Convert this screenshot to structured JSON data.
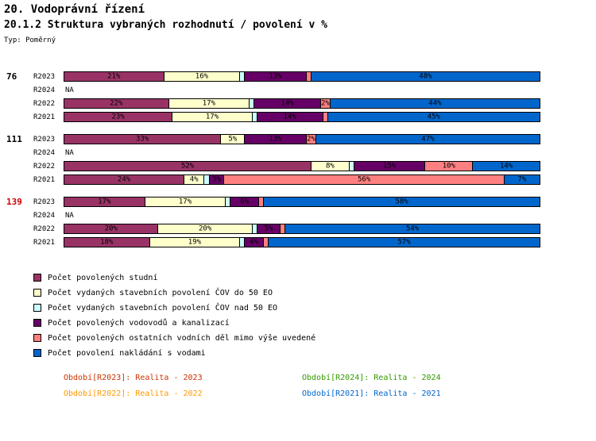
{
  "title": "20. Vodoprávní řízení",
  "subtitle": "20.1.2 Struktura vybraných rozhodnutí / povolení v %",
  "type_label": "Typ: Poměrný",
  "na_label": "NA",
  "chart_data": {
    "type": "bar",
    "variant": "horizontal-stacked-100pct",
    "unit": "%",
    "xlim": [
      0,
      100
    ],
    "grid": false,
    "legend_position": "bottom-left",
    "series": [
      {
        "name": "Počet povolených studní",
        "color": "#993366"
      },
      {
        "name": "Počet vydaných stavebních povolení ČOV do 50 EO",
        "color": "#FFFFCC"
      },
      {
        "name": "Počet vydaných stavebních povolení ČOV nad 50 EO",
        "color": "#CCFFFF"
      },
      {
        "name": "Počet povolených vodovodů a kanalizací",
        "color": "#660066"
      },
      {
        "name": "Počet povolených ostatních vodních děl mimo výše uvedené",
        "color": "#FF8080"
      },
      {
        "name": "Počet povolení nakládání s vodami",
        "color": "#0066CC"
      }
    ],
    "groups": [
      {
        "id": "76",
        "id_color": "#000000",
        "rows": [
          {
            "label": "R2023",
            "values": [
              21,
              16,
              1,
              13,
              1,
              48
            ],
            "value_labels": [
              "21%",
              "16%",
              "",
              "13%",
              "",
              "48%"
            ]
          },
          {
            "label": "R2024",
            "na": true
          },
          {
            "label": "R2022",
            "values": [
              22,
              17,
              1,
              14,
              2,
              44
            ],
            "value_labels": [
              "22%",
              "17%",
              "",
              "14%",
              "2%",
              "44%"
            ]
          },
          {
            "label": "R2021",
            "values": [
              23,
              17,
              1,
              14,
              1,
              45
            ],
            "value_labels": [
              "23%",
              "17%",
              "",
              "14%",
              "",
              "45%"
            ]
          }
        ]
      },
      {
        "id": "111",
        "id_color": "#000000",
        "rows": [
          {
            "label": "R2023",
            "values": [
              33,
              5,
              0,
              13,
              2,
              47
            ],
            "value_labels": [
              "33%",
              "5%",
              "",
              "13%",
              "2%",
              "47%"
            ]
          },
          {
            "label": "R2024",
            "na": true
          },
          {
            "label": "R2022",
            "values": [
              52,
              8,
              1,
              15,
              10,
              14
            ],
            "value_labels": [
              "52%",
              "8%",
              "",
              "15%",
              "10%",
              "14%"
            ]
          },
          {
            "label": "R2021",
            "values": [
              24,
              4,
              1,
              3,
              56,
              7
            ],
            "value_labels": [
              "24%",
              "4%",
              "",
              "3%",
              "56%",
              "7%"
            ]
          }
        ]
      },
      {
        "id": "139",
        "id_color": "#CC0000",
        "rows": [
          {
            "label": "R2023",
            "values": [
              17,
              17,
              1,
              6,
              1,
              58
            ],
            "value_labels": [
              "17%",
              "17%",
              "",
              "6%",
              "",
              "58%"
            ]
          },
          {
            "label": "R2024",
            "na": true
          },
          {
            "label": "R2022",
            "values": [
              20,
              20,
              1,
              5,
              1,
              54
            ],
            "value_labels": [
              "20%",
              "20%",
              "",
              "5%",
              "",
              "54%"
            ]
          },
          {
            "label": "R2021",
            "values": [
              18,
              19,
              1,
              4,
              1,
              57
            ],
            "value_labels": [
              "18%",
              "19%",
              "",
              "4%",
              "",
              "57%"
            ]
          }
        ]
      }
    ]
  },
  "periods": [
    {
      "label": "Období[R2023]: Realita - 2023",
      "color": "#CC3300"
    },
    {
      "label": "Období[R2024]: Realita - 2024",
      "color": "#339900"
    },
    {
      "label": "Období[R2022]: Realita - 2022",
      "color": "#FF9900"
    },
    {
      "label": "Období[R2021]: Realita - 2021",
      "color": "#0066CC"
    }
  ]
}
